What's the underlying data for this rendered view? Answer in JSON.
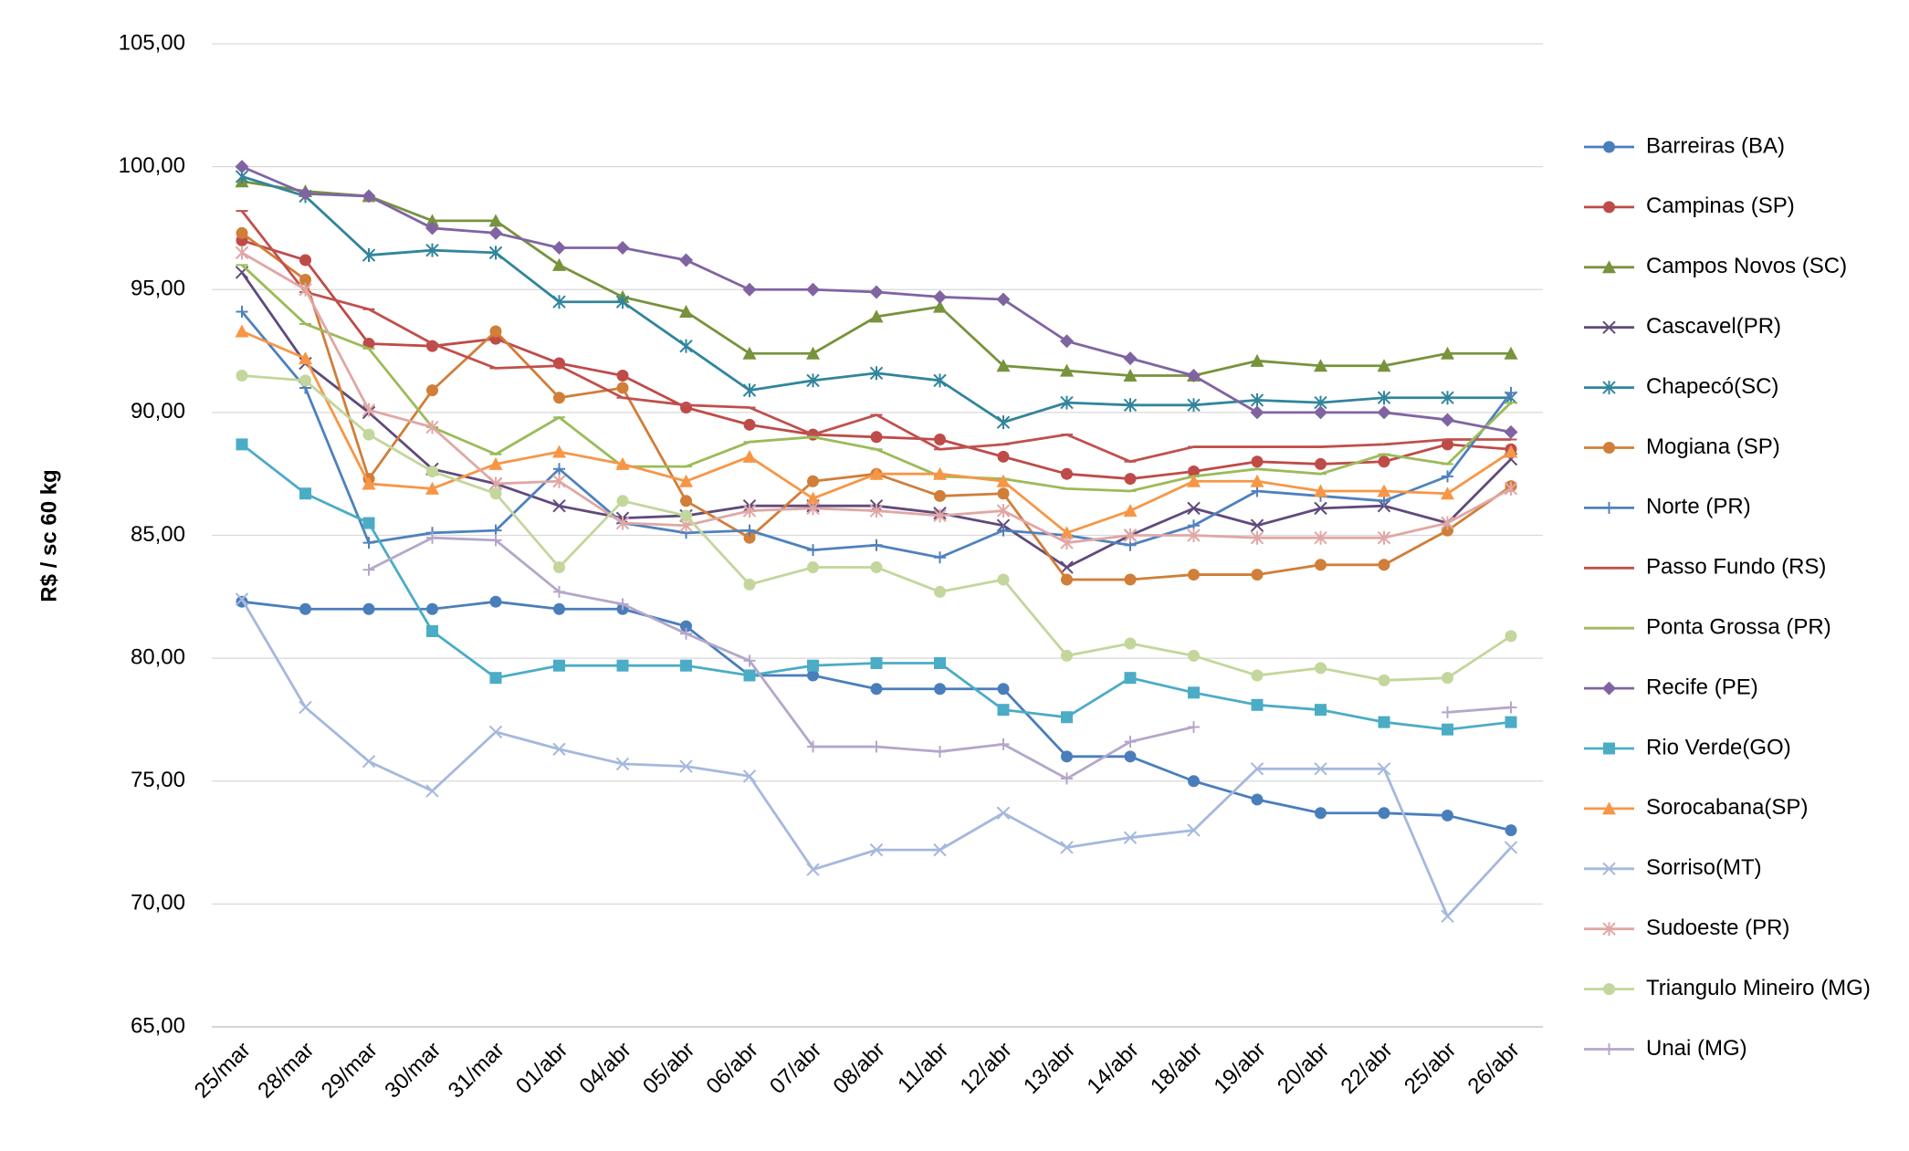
{
  "chart_data": {
    "type": "line",
    "y_label": "R$ / sc 60 kg",
    "categories": [
      "25/mar",
      "28/mar",
      "29/mar",
      "30/mar",
      "31/mar",
      "01/abr",
      "04/abr",
      "05/abr",
      "06/abr",
      "07/abr",
      "08/abr",
      "11/abr",
      "12/abr",
      "13/abr",
      "14/abr",
      "18/abr",
      "19/abr",
      "20/abr",
      "22/abr",
      "25/abr",
      "26/abr"
    ],
    "ylim": [
      65,
      105
    ],
    "yticks": [
      {
        "value": 65,
        "label": "65,00"
      },
      {
        "value": 70,
        "label": "70,00"
      },
      {
        "value": 75,
        "label": "75,00"
      },
      {
        "value": 80,
        "label": "80,00"
      },
      {
        "value": 85,
        "label": "85,00"
      },
      {
        "value": 90,
        "label": "90,00"
      },
      {
        "value": 95,
        "label": "95,00"
      },
      {
        "value": 100,
        "label": "100,00"
      },
      {
        "value": 105,
        "label": "105,00"
      }
    ],
    "grid": true,
    "legend": "right",
    "series": [
      {
        "name": "Barreiras (BA)",
        "color": "#4a7ebb",
        "marker": "circle",
        "values": [
          82.3,
          82.0,
          82.0,
          82.0,
          82.3,
          82.0,
          82.0,
          81.3,
          79.3,
          79.3,
          78.75,
          78.75,
          78.75,
          76.0,
          76.0,
          75.0,
          74.25,
          73.7,
          73.7,
          73.6,
          73.0
        ]
      },
      {
        "name": "Campinas (SP)",
        "color": "#be4b48",
        "marker": "circle",
        "values": [
          97.0,
          96.2,
          92.8,
          92.7,
          93.0,
          92.0,
          91.5,
          90.2,
          89.5,
          89.1,
          89.0,
          88.9,
          88.2,
          87.5,
          87.3,
          87.6,
          88.0,
          87.9,
          88.0,
          88.7,
          88.5
        ]
      },
      {
        "name": "Campos Novos (SC)",
        "color": "#77933c",
        "marker": "triangle",
        "values": [
          99.4,
          99.0,
          98.8,
          97.8,
          97.8,
          96.0,
          94.7,
          94.1,
          92.4,
          92.4,
          93.9,
          94.3,
          91.9,
          91.7,
          91.5,
          91.5,
          92.1,
          91.9,
          91.9,
          92.4,
          92.4
        ]
      },
      {
        "name": "Cascavel(PR)",
        "color": "#604a7b",
        "marker": "x",
        "values": [
          95.7,
          92.0,
          90.0,
          87.7,
          87.1,
          86.2,
          85.7,
          85.8,
          86.2,
          86.2,
          86.2,
          85.9,
          85.4,
          83.7,
          85.0,
          86.1,
          85.4,
          86.1,
          86.2,
          85.5,
          88.1
        ]
      },
      {
        "name": "Chapecó(SC)",
        "color": "#31859c",
        "marker": "star",
        "values": [
          99.6,
          98.8,
          96.4,
          96.6,
          96.5,
          94.5,
          94.5,
          92.7,
          90.9,
          91.3,
          91.6,
          91.3,
          89.6,
          90.4,
          90.3,
          90.3,
          90.5,
          90.4,
          90.6,
          90.6,
          90.6
        ]
      },
      {
        "name": "Mogiana (SP)",
        "color": "#d07e38",
        "marker": "circle",
        "values": [
          97.3,
          95.4,
          87.3,
          90.9,
          93.3,
          90.6,
          91.0,
          86.4,
          84.9,
          87.2,
          87.5,
          86.6,
          86.7,
          83.2,
          83.2,
          83.4,
          83.4,
          83.8,
          83.8,
          85.2,
          87.0
        ]
      },
      {
        "name": "Norte (PR)",
        "color": "#4f81bd",
        "marker": "plus",
        "values": [
          94.1,
          91.0,
          84.7,
          85.1,
          85.2,
          87.7,
          85.5,
          85.1,
          85.2,
          84.4,
          84.6,
          84.1,
          85.2,
          85.0,
          84.6,
          85.4,
          86.8,
          86.6,
          86.4,
          87.4,
          90.8
        ]
      },
      {
        "name": "Passo Fundo (RS)",
        "color": "#c0504d",
        "marker": "dash",
        "values": [
          98.2,
          94.9,
          94.2,
          92.8,
          91.8,
          91.9,
          90.6,
          90.3,
          90.2,
          89.1,
          89.9,
          88.5,
          88.7,
          89.1,
          88.0,
          88.6,
          88.6,
          88.6,
          88.7,
          88.9,
          88.9
        ]
      },
      {
        "name": "Ponta Grossa (PR)",
        "color": "#9bbb59",
        "marker": "dash",
        "values": [
          96.0,
          93.6,
          92.6,
          89.4,
          88.3,
          89.8,
          87.8,
          87.8,
          88.8,
          89.0,
          88.5,
          87.4,
          87.3,
          86.9,
          86.8,
          87.4,
          87.7,
          87.5,
          88.3,
          87.9,
          90.4
        ]
      },
      {
        "name": "Recife (PE)",
        "color": "#8064a2",
        "marker": "diamond",
        "values": [
          100.0,
          98.9,
          98.8,
          97.5,
          97.3,
          96.7,
          96.7,
          96.2,
          95.0,
          95.0,
          94.9,
          94.7,
          94.6,
          92.9,
          92.2,
          91.5,
          90.0,
          90.0,
          90.0,
          89.7,
          89.2
        ]
      },
      {
        "name": "Rio Verde(GO)",
        "color": "#4bacc6",
        "marker": "square",
        "values": [
          88.7,
          86.7,
          85.5,
          81.1,
          79.2,
          79.7,
          79.7,
          79.7,
          79.3,
          79.7,
          79.8,
          79.8,
          77.9,
          77.6,
          79.2,
          78.6,
          78.1,
          77.9,
          77.4,
          77.1,
          77.4
        ]
      },
      {
        "name": "Sorocabana(SP)",
        "color": "#f79646",
        "marker": "triangle",
        "values": [
          93.3,
          92.2,
          87.1,
          86.9,
          87.9,
          88.4,
          87.9,
          87.2,
          88.2,
          86.5,
          87.5,
          87.5,
          87.2,
          85.1,
          86.0,
          87.2,
          87.2,
          86.8,
          86.8,
          86.7,
          88.4
        ]
      },
      {
        "name": "Sorriso(MT)",
        "color": "#a5b8dd",
        "marker": "x",
        "values": [
          82.4,
          78.0,
          75.8,
          74.6,
          77.0,
          76.3,
          75.7,
          75.6,
          75.2,
          71.4,
          72.2,
          72.2,
          73.7,
          72.3,
          72.7,
          73.0,
          75.5,
          75.5,
          75.5,
          69.5,
          72.3
        ]
      },
      {
        "name": "Sudoeste (PR)",
        "color": "#e0a7a5",
        "marker": "star",
        "values": [
          96.5,
          95.0,
          90.1,
          89.4,
          87.1,
          87.2,
          85.5,
          85.4,
          86.0,
          86.1,
          86.0,
          85.8,
          86.0,
          84.7,
          85.0,
          85.0,
          84.9,
          84.9,
          84.9,
          85.5,
          86.9
        ]
      },
      {
        "name": "Triangulo Mineiro (MG)",
        "color": "#c3d69b",
        "marker": "circle",
        "values": [
          91.5,
          91.3,
          89.1,
          87.6,
          86.7,
          83.7,
          86.4,
          85.8,
          83.0,
          83.7,
          83.7,
          82.7,
          83.2,
          80.1,
          80.6,
          80.1,
          79.3,
          79.6,
          79.1,
          79.2,
          80.9
        ]
      },
      {
        "name": "Unai (MG)",
        "color": "#b4a7c9",
        "marker": "plus",
        "values": [
          null,
          null,
          83.6,
          84.9,
          84.8,
          82.7,
          82.2,
          81.0,
          79.9,
          76.4,
          76.4,
          76.2,
          76.5,
          75.1,
          76.6,
          77.2,
          null,
          null,
          null,
          77.8,
          78.0
        ]
      }
    ]
  }
}
